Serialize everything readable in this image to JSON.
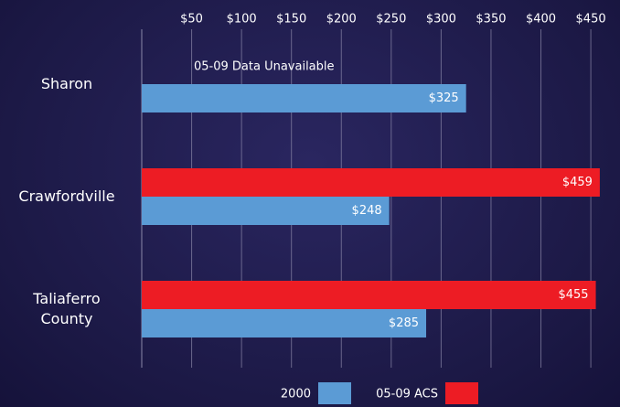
{
  "chart_data": {
    "type": "hbar",
    "categories": [
      "Sharon",
      "Crawfordville",
      "Taliaferro County"
    ],
    "series": [
      {
        "name": "2000",
        "color": "#5b9bd5",
        "values": [
          325,
          248,
          285
        ],
        "value_labels": [
          "$325",
          "$248",
          "$285"
        ]
      },
      {
        "name": "05-09 ACS",
        "color": "#ed1c24",
        "values": [
          null,
          459,
          455
        ],
        "value_labels": [
          null,
          "$459",
          "$455"
        ]
      }
    ],
    "annotations": [
      "05-09 Data Unavailable"
    ],
    "xlim": [
      0,
      460
    ],
    "xticks": [
      {
        "value": 50,
        "label": "$50"
      },
      {
        "value": 100,
        "label": "$100"
      },
      {
        "value": 150,
        "label": "$150"
      },
      {
        "value": 200,
        "label": "$200"
      },
      {
        "value": 250,
        "label": "$250"
      },
      {
        "value": 300,
        "label": "$300"
      },
      {
        "value": 350,
        "label": "$350"
      },
      {
        "value": 400,
        "label": "$400"
      },
      {
        "value": 450,
        "label": "$450"
      }
    ],
    "grid": true
  }
}
